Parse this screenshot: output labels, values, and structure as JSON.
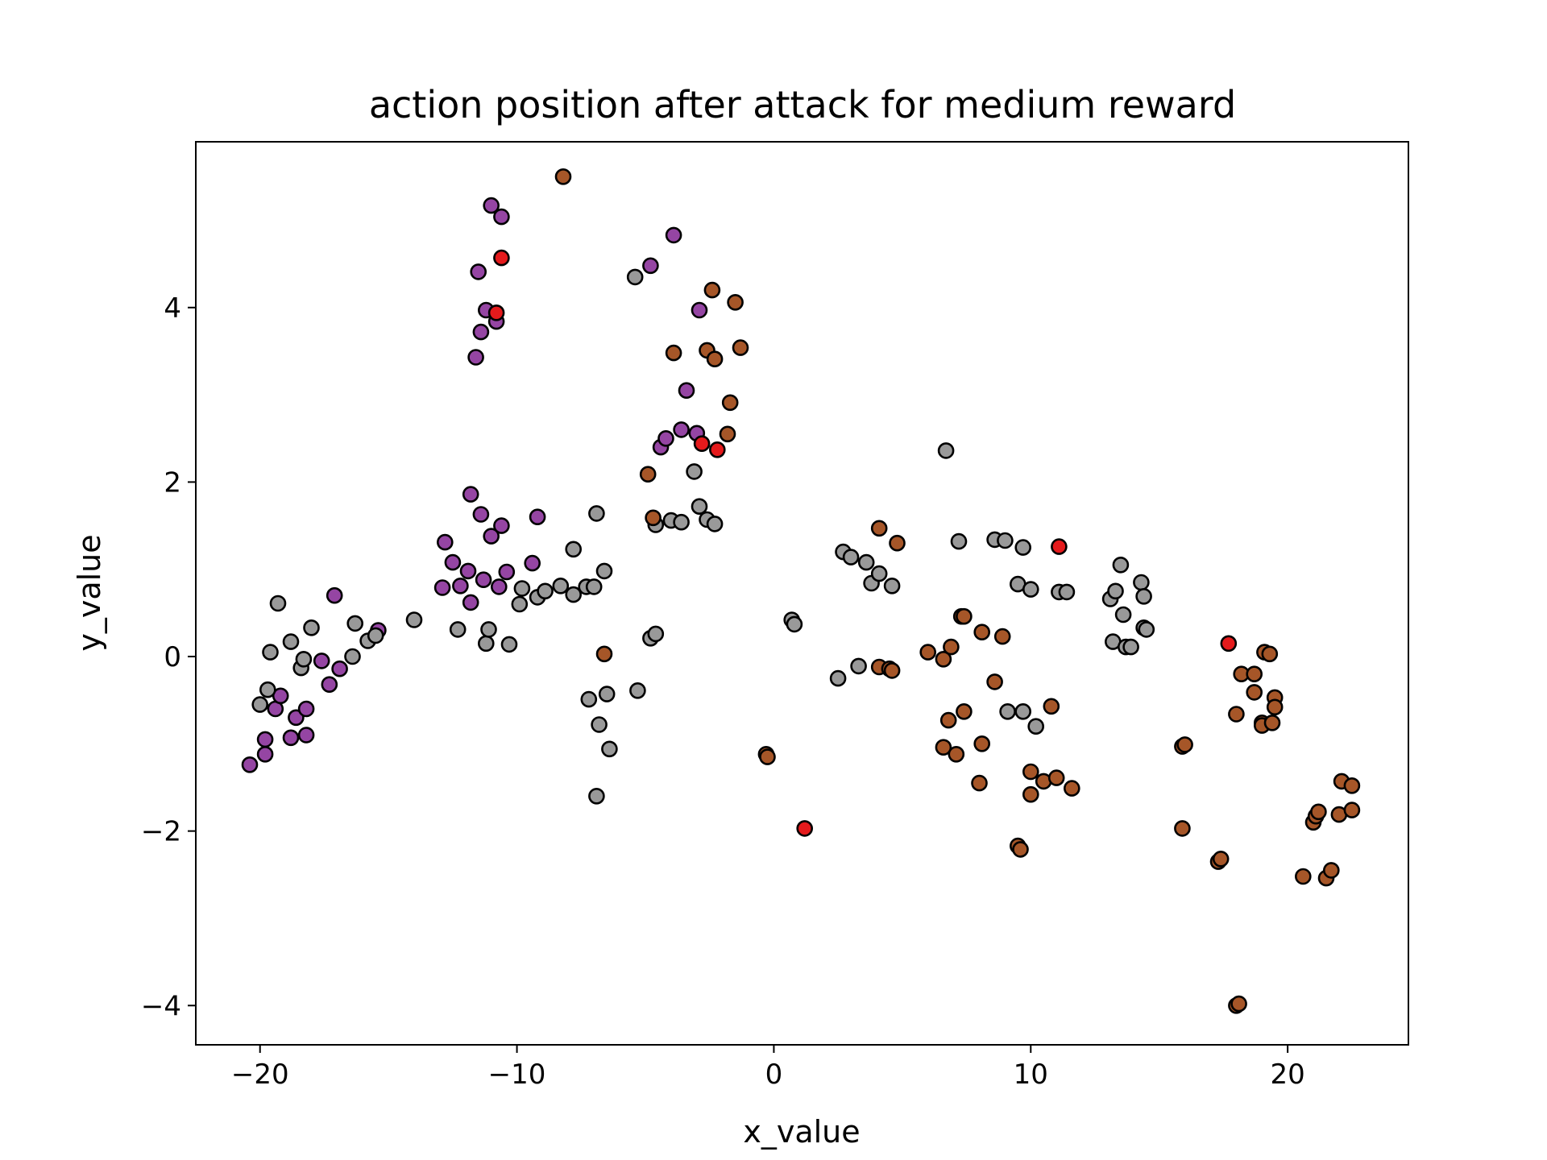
{
  "chart_data": {
    "type": "scatter",
    "title": "action position after attack for medium reward",
    "xlabel": "x_value",
    "ylabel": "y_value",
    "xlim": [
      -22.5,
      24.7
    ],
    "ylim": [
      -4.45,
      5.9
    ],
    "xticks": [
      -20,
      -10,
      0,
      10,
      20
    ],
    "yticks": [
      -4,
      -2,
      0,
      2,
      4
    ],
    "xtick_labels": [
      "−20",
      "−10",
      "0",
      "10",
      "20"
    ],
    "ytick_labels": [
      "−4",
      "−2",
      "0",
      "2",
      "4"
    ],
    "grid": false,
    "legend": "none",
    "colors": {
      "purple": "#9545a3",
      "gray": "#999999",
      "brown": "#a65628",
      "red": "#e41a1c",
      "edge": "#000000"
    },
    "groups": [
      {
        "color": "purple",
        "points": [
          [
            -20.4,
            -1.24
          ],
          [
            -19.8,
            -0.95
          ],
          [
            -19.8,
            -1.12
          ],
          [
            -19.4,
            -0.6
          ],
          [
            -19.2,
            -0.45
          ],
          [
            -18.8,
            -0.93
          ],
          [
            -18.6,
            -0.7
          ],
          [
            -18.2,
            -0.9
          ],
          [
            -18.2,
            -0.6
          ],
          [
            -17.6,
            -0.05
          ],
          [
            -17.3,
            -0.32
          ],
          [
            -17.1,
            0.7
          ],
          [
            -16.9,
            -0.14
          ],
          [
            -15.4,
            0.3
          ],
          [
            -12.8,
            1.31
          ],
          [
            -12.9,
            0.79
          ],
          [
            -12.5,
            1.08
          ],
          [
            -12.2,
            0.81
          ],
          [
            -11.9,
            0.98
          ],
          [
            -11.8,
            1.86
          ],
          [
            -11.8,
            0.62
          ],
          [
            -11.4,
            1.63
          ],
          [
            -11.3,
            0.88
          ],
          [
            -11.0,
            1.38
          ],
          [
            -10.7,
            0.8
          ],
          [
            -10.6,
            1.5
          ],
          [
            -10.4,
            0.97
          ],
          [
            -9.4,
            1.07
          ],
          [
            -9.2,
            1.6
          ],
          [
            -11.6,
            3.43
          ],
          [
            -11.4,
            3.72
          ],
          [
            -11.2,
            3.97
          ],
          [
            -10.8,
            3.84
          ],
          [
            -11.5,
            4.41
          ],
          [
            -11.0,
            5.17
          ],
          [
            -10.6,
            5.04
          ],
          [
            -4.8,
            4.48
          ],
          [
            -3.9,
            4.83
          ],
          [
            -4.4,
            2.4
          ],
          [
            -4.2,
            2.5
          ],
          [
            -3.6,
            2.6
          ],
          [
            -3.4,
            3.05
          ],
          [
            -3.0,
            2.56
          ],
          [
            -2.9,
            3.97
          ]
        ]
      },
      {
        "color": "gray",
        "points": [
          [
            -20.0,
            -0.55
          ],
          [
            -19.7,
            -0.38
          ],
          [
            -19.6,
            0.05
          ],
          [
            -19.3,
            0.61
          ],
          [
            -18.8,
            0.17
          ],
          [
            -18.4,
            -0.13
          ],
          [
            -18.3,
            -0.03
          ],
          [
            -18.0,
            0.33
          ],
          [
            -16.4,
            0.0
          ],
          [
            -16.3,
            0.38
          ],
          [
            -15.8,
            0.18
          ],
          [
            -15.5,
            0.24
          ],
          [
            -14.0,
            0.42
          ],
          [
            -12.3,
            0.31
          ],
          [
            -11.2,
            0.15
          ],
          [
            -11.1,
            0.31
          ],
          [
            -10.3,
            0.14
          ],
          [
            -9.9,
            0.6
          ],
          [
            -9.8,
            0.78
          ],
          [
            -9.2,
            0.68
          ],
          [
            -8.9,
            0.75
          ],
          [
            -8.3,
            0.81
          ],
          [
            -7.8,
            1.23
          ],
          [
            -7.8,
            0.71
          ],
          [
            -7.3,
            0.8
          ],
          [
            -7.0,
            0.8
          ],
          [
            -6.9,
            1.64
          ],
          [
            -6.6,
            0.98
          ],
          [
            -7.2,
            -0.49
          ],
          [
            -6.5,
            -0.43
          ],
          [
            -6.8,
            -0.78
          ],
          [
            -6.4,
            -1.06
          ],
          [
            -6.9,
            -1.6
          ],
          [
            -5.3,
            -0.39
          ],
          [
            -4.8,
            0.21
          ],
          [
            -4.6,
            0.26
          ],
          [
            -4.6,
            1.51
          ],
          [
            -4.0,
            1.56
          ],
          [
            -3.6,
            1.54
          ],
          [
            -3.1,
            2.12
          ],
          [
            -2.9,
            1.72
          ],
          [
            -2.6,
            1.57
          ],
          [
            -2.3,
            1.52
          ],
          [
            -5.4,
            4.35
          ],
          [
            0.7,
            0.42
          ],
          [
            0.8,
            0.37
          ],
          [
            2.5,
            -0.25
          ],
          [
            2.7,
            1.2
          ],
          [
            3.0,
            1.14
          ],
          [
            3.3,
            -0.11
          ],
          [
            3.6,
            1.08
          ],
          [
            3.8,
            0.84
          ],
          [
            4.1,
            0.95
          ],
          [
            4.6,
            0.81
          ],
          [
            6.7,
            2.36
          ],
          [
            7.2,
            1.32
          ],
          [
            8.6,
            1.34
          ],
          [
            9.0,
            1.33
          ],
          [
            9.5,
            0.83
          ],
          [
            9.7,
            1.25
          ],
          [
            10.0,
            0.77
          ],
          [
            9.1,
            -0.63
          ],
          [
            9.7,
            -0.63
          ],
          [
            10.2,
            -0.8
          ],
          [
            11.1,
            0.74
          ],
          [
            11.4,
            0.74
          ],
          [
            13.1,
            0.66
          ],
          [
            13.3,
            0.75
          ],
          [
            13.5,
            1.05
          ],
          [
            13.6,
            0.48
          ],
          [
            13.2,
            0.17
          ],
          [
            13.7,
            0.11
          ],
          [
            13.9,
            0.11
          ],
          [
            14.3,
            0.85
          ],
          [
            14.4,
            0.69
          ],
          [
            14.4,
            0.33
          ],
          [
            14.5,
            0.31
          ]
        ]
      },
      {
        "color": "brown",
        "points": [
          [
            -8.2,
            5.5
          ],
          [
            -6.6,
            0.03
          ],
          [
            -4.9,
            2.09
          ],
          [
            -4.7,
            1.59
          ],
          [
            -3.9,
            3.48
          ],
          [
            -2.6,
            3.51
          ],
          [
            -2.4,
            4.2
          ],
          [
            -2.3,
            3.41
          ],
          [
            -1.8,
            2.55
          ],
          [
            -1.7,
            2.91
          ],
          [
            -1.5,
            4.06
          ],
          [
            -1.3,
            3.54
          ],
          [
            -0.3,
            -1.12
          ],
          [
            -0.25,
            -1.15
          ],
          [
            4.1,
            1.47
          ],
          [
            4.8,
            1.3
          ],
          [
            4.1,
            -0.12
          ],
          [
            4.5,
            -0.14
          ],
          [
            4.6,
            -0.16
          ],
          [
            6.0,
            0.05
          ],
          [
            6.6,
            -0.03
          ],
          [
            6.8,
            -0.73
          ],
          [
            6.9,
            0.11
          ],
          [
            7.3,
            0.46
          ],
          [
            7.4,
            0.46
          ],
          [
            7.4,
            -0.63
          ],
          [
            6.6,
            -1.04
          ],
          [
            7.1,
            -1.12
          ],
          [
            8.1,
            0.28
          ],
          [
            8.0,
            -1.45
          ],
          [
            8.1,
            -1.0
          ],
          [
            8.6,
            -0.29
          ],
          [
            8.9,
            0.23
          ],
          [
            9.5,
            -2.17
          ],
          [
            9.6,
            -2.21
          ],
          [
            10.0,
            -1.32
          ],
          [
            10.0,
            -1.58
          ],
          [
            10.5,
            -1.43
          ],
          [
            10.8,
            -0.57
          ],
          [
            11.0,
            -1.39
          ],
          [
            11.6,
            -1.51
          ],
          [
            15.9,
            -1.03
          ],
          [
            15.9,
            -1.97
          ],
          [
            16.0,
            -1.01
          ],
          [
            17.3,
            -2.35
          ],
          [
            17.4,
            -2.32
          ],
          [
            18.0,
            -4.0
          ],
          [
            18.1,
            -3.98
          ],
          [
            18.0,
            -0.66
          ],
          [
            18.2,
            -0.2
          ],
          [
            18.7,
            -0.2
          ],
          [
            18.7,
            -0.41
          ],
          [
            19.0,
            -0.76
          ],
          [
            19.0,
            -0.79
          ],
          [
            19.1,
            0.05
          ],
          [
            19.3,
            0.03
          ],
          [
            19.4,
            -0.76
          ],
          [
            19.5,
            -0.47
          ],
          [
            19.5,
            -0.58
          ],
          [
            20.6,
            -2.52
          ],
          [
            21.0,
            -1.9
          ],
          [
            21.1,
            -1.83
          ],
          [
            21.2,
            -1.78
          ],
          [
            21.5,
            -2.54
          ],
          [
            21.7,
            -2.45
          ],
          [
            22.0,
            -1.81
          ],
          [
            22.1,
            -1.43
          ],
          [
            22.5,
            -1.76
          ],
          [
            22.5,
            -1.48
          ]
        ]
      },
      {
        "color": "red",
        "points": [
          [
            -10.6,
            4.57
          ],
          [
            -10.8,
            3.94
          ],
          [
            -2.8,
            2.44
          ],
          [
            -2.2,
            2.37
          ],
          [
            1.2,
            -1.97
          ],
          [
            11.1,
            1.26
          ],
          [
            17.7,
            0.15
          ]
        ]
      }
    ]
  }
}
